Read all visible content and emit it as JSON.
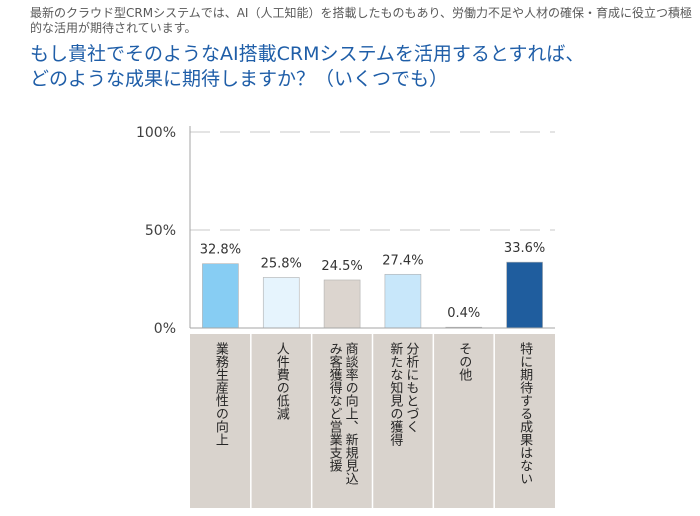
{
  "header": {
    "intro": "最新のクラウド型CRMシステムでは、AI（人工知能）を搭載したものもあり、労働力不足や人材の確保・育成に役立つ積極的な活用が期待されています。",
    "question_line1": "もし貴社でそのようなAI搭載CRMシステムを活用するとすれば、",
    "question_line2": "どのような成果に期待しますか？（いくつでも）"
  },
  "chart_data": {
    "type": "bar",
    "title": "",
    "xlabel": "",
    "ylabel": "",
    "ylim": [
      0,
      100
    ],
    "y_ticks": [
      "0%",
      "50%",
      "100%"
    ],
    "categories": [
      [
        "業務生産性の向上"
      ],
      [
        "人件費の低減"
      ],
      [
        "商談率の向上、新規見込",
        "み客獲得など営業支援"
      ],
      [
        "分析にもとづく",
        "新たな知見の獲得"
      ],
      [
        "その他"
      ],
      [
        "特に期待する成果はない"
      ]
    ],
    "values": [
      32.8,
      25.8,
      24.5,
      27.4,
      0.4,
      33.6
    ],
    "value_labels": [
      "32.8%",
      "25.8%",
      "24.5%",
      "27.4%",
      "0.4%",
      "33.6%"
    ],
    "colors": [
      "#87cdf3",
      "#e6f4fd",
      "#dcd5cf",
      "#c8e7fa",
      "#ececec",
      "#1f5d9e"
    ],
    "label_background": "#d9d3cd",
    "gridlines": "dashed"
  }
}
